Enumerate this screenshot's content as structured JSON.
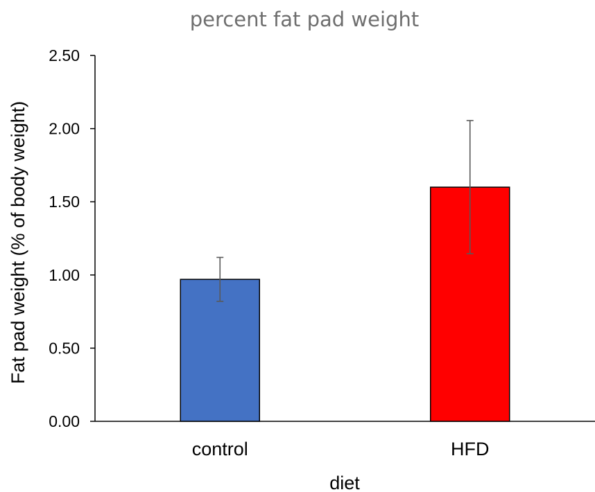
{
  "chart_data": {
    "type": "bar",
    "title": "percent fat pad weight",
    "xlabel": "diet",
    "ylabel": "Fat pad weight (% of body weight)",
    "categories": [
      "control",
      "HFD"
    ],
    "values": [
      0.97,
      1.6
    ],
    "error_bars": [
      0.15,
      0.455
    ],
    "bar_colors": [
      "#4472c4",
      "#ff0000"
    ],
    "error_bar_color": "#595959",
    "ylim": [
      0,
      2.5
    ],
    "y_ticks": [
      "0.00",
      "0.50",
      "1.00",
      "1.50",
      "2.00",
      "2.50"
    ],
    "grid": false,
    "legend": "none"
  }
}
